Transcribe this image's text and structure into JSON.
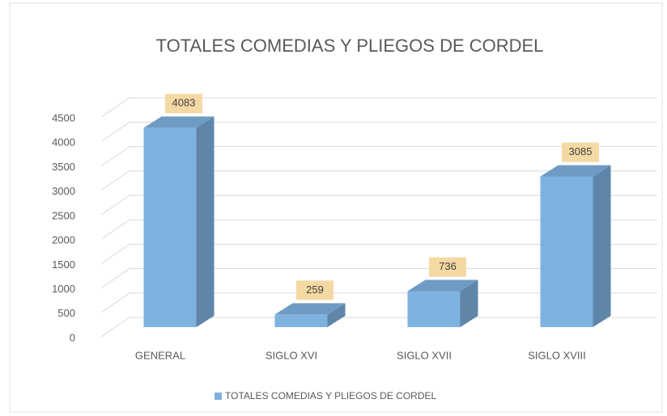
{
  "chart_data": {
    "type": "bar",
    "title": "TOTALES COMEDIAS Y PLIEGOS DE CORDEL",
    "categories": [
      "GENERAL",
      "SIGLO XVI",
      "SIGLO XVII",
      "SIGLO XVIII"
    ],
    "series": [
      {
        "name": "TOTALES COMEDIAS Y PLIEGOS DE CORDEL",
        "color": "#7eb2e0",
        "values": [
          4083,
          259,
          736,
          3085
        ]
      }
    ],
    "ylim": [
      0,
      4500
    ],
    "yticks": [
      0,
      500,
      1000,
      1500,
      2000,
      2500,
      3000,
      3500,
      4000,
      4500
    ],
    "grid": true,
    "legend": "bottom"
  }
}
